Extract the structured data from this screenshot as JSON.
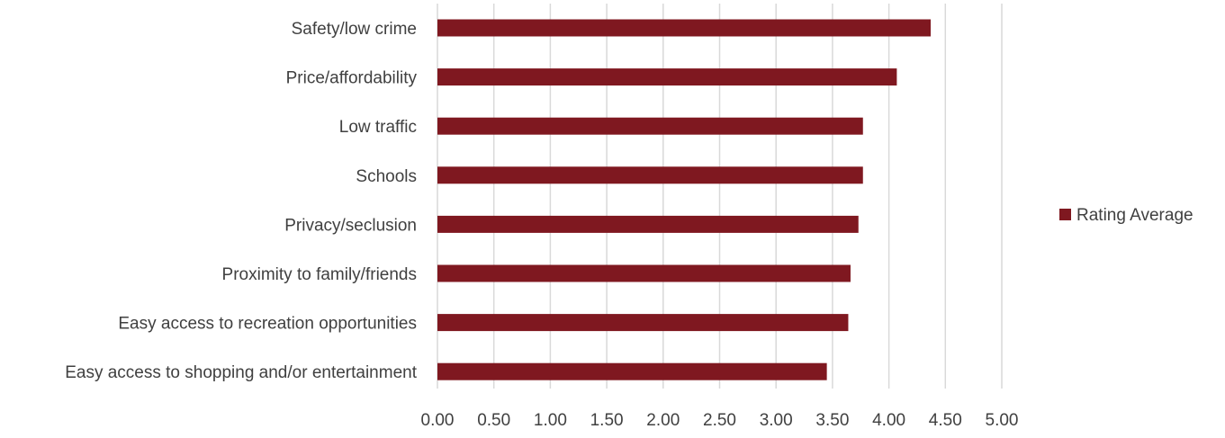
{
  "chart_data": {
    "type": "bar",
    "orientation": "horizontal",
    "categories": [
      "Safety/low crime",
      "Price/affordability",
      "Low traffic",
      "Schools",
      "Privacy/seclusion",
      "Proximity to family/friends",
      "Easy access to recreation opportunities",
      "Easy access to shopping and/or entertainment"
    ],
    "series": [
      {
        "name": "Rating Average",
        "values": [
          4.37,
          4.07,
          3.77,
          3.77,
          3.73,
          3.66,
          3.64,
          3.45
        ],
        "color": "#7f1820"
      }
    ],
    "xlim": [
      0,
      5
    ],
    "xticks": [
      "0.00",
      "0.50",
      "1.00",
      "1.50",
      "2.00",
      "2.50",
      "3.00",
      "3.50",
      "4.00",
      "4.50",
      "5.00"
    ],
    "grid": true,
    "legend_position": "right"
  }
}
